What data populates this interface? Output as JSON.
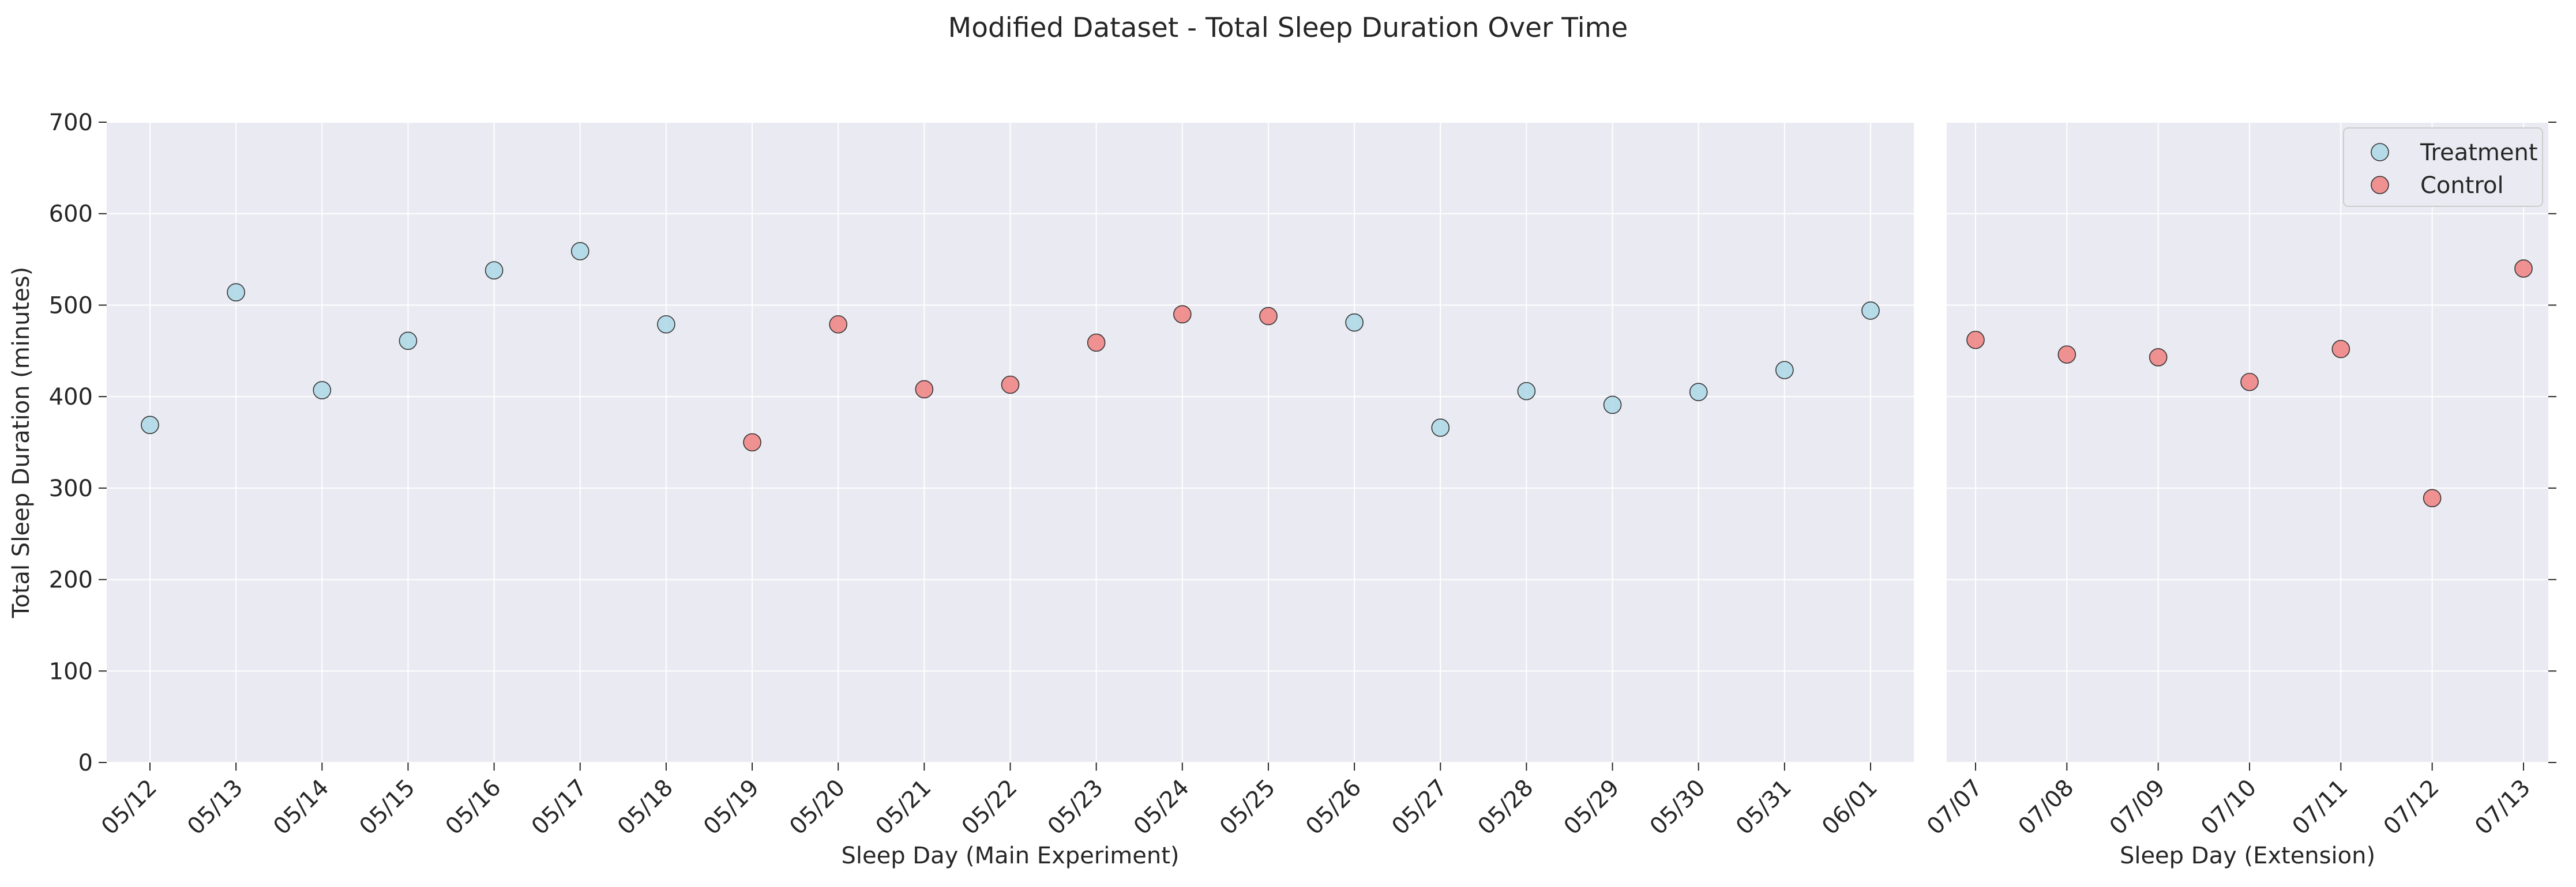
{
  "title": "Modified Dataset - Total Sleep Duration Over Time",
  "colors": {
    "Treatment": "#add8e6",
    "Control": "#f08080",
    "marker_edge": "#333333",
    "plot_bg": "#eaeaf2",
    "grid": "#ffffff"
  },
  "chart_data": [
    {
      "type": "scatter",
      "panel": "main",
      "xlabel": "Sleep Day (Main Experiment)",
      "ylabel": "Total Sleep Duration (minutes)",
      "ylim": [
        0,
        700
      ],
      "yticks": [
        0,
        100,
        200,
        300,
        400,
        500,
        600,
        700
      ],
      "grid": true,
      "categories": [
        "05/12",
        "05/13",
        "05/14",
        "05/15",
        "05/16",
        "05/17",
        "05/18",
        "05/19",
        "05/20",
        "05/21",
        "05/22",
        "05/23",
        "05/24",
        "05/25",
        "05/26",
        "05/27",
        "05/28",
        "05/29",
        "05/30",
        "05/31",
        "06/01"
      ],
      "points": [
        {
          "x": "05/12",
          "y": 369,
          "group": "Treatment"
        },
        {
          "x": "05/13",
          "y": 514,
          "group": "Treatment"
        },
        {
          "x": "05/14",
          "y": 407,
          "group": "Treatment"
        },
        {
          "x": "05/15",
          "y": 461,
          "group": "Treatment"
        },
        {
          "x": "05/16",
          "y": 538,
          "group": "Treatment"
        },
        {
          "x": "05/17",
          "y": 559,
          "group": "Treatment"
        },
        {
          "x": "05/18",
          "y": 479,
          "group": "Treatment"
        },
        {
          "x": "05/19",
          "y": 350,
          "group": "Control"
        },
        {
          "x": "05/20",
          "y": 479,
          "group": "Control"
        },
        {
          "x": "05/21",
          "y": 408,
          "group": "Control"
        },
        {
          "x": "05/22",
          "y": 413,
          "group": "Control"
        },
        {
          "x": "05/23",
          "y": 459,
          "group": "Control"
        },
        {
          "x": "05/24",
          "y": 490,
          "group": "Control"
        },
        {
          "x": "05/25",
          "y": 488,
          "group": "Control"
        },
        {
          "x": "05/26",
          "y": 481,
          "group": "Treatment"
        },
        {
          "x": "05/27",
          "y": 366,
          "group": "Treatment"
        },
        {
          "x": "05/28",
          "y": 406,
          "group": "Treatment"
        },
        {
          "x": "05/29",
          "y": 391,
          "group": "Treatment"
        },
        {
          "x": "05/30",
          "y": 405,
          "group": "Treatment"
        },
        {
          "x": "05/31",
          "y": 429,
          "group": "Treatment"
        },
        {
          "x": "06/01",
          "y": 494,
          "group": "Treatment"
        }
      ]
    },
    {
      "type": "scatter",
      "panel": "extension",
      "xlabel": "Sleep Day (Extension)",
      "ylim": [
        0,
        700
      ],
      "grid": true,
      "legend": {
        "placement": "top-right",
        "entries": [
          "Treatment",
          "Control"
        ]
      },
      "categories": [
        "07/07",
        "07/08",
        "07/09",
        "07/10",
        "07/11",
        "07/12",
        "07/13"
      ],
      "points": [
        {
          "x": "07/07",
          "y": 462,
          "group": "Control"
        },
        {
          "x": "07/08",
          "y": 446,
          "group": "Control"
        },
        {
          "x": "07/09",
          "y": 443,
          "group": "Control"
        },
        {
          "x": "07/10",
          "y": 416,
          "group": "Control"
        },
        {
          "x": "07/11",
          "y": 452,
          "group": "Control"
        },
        {
          "x": "07/12",
          "y": 289,
          "group": "Control"
        },
        {
          "x": "07/13",
          "y": 540,
          "group": "Control"
        }
      ]
    }
  ]
}
